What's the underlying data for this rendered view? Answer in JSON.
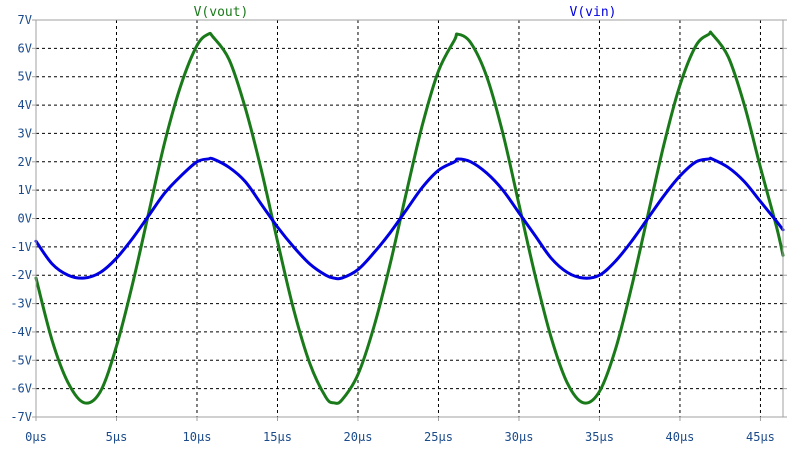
{
  "chart_data": {
    "type": "line",
    "title": "",
    "xlabel": "",
    "ylabel": "",
    "x_unit": "µs",
    "y_unit": "V",
    "xlim": [
      0,
      46.4
    ],
    "ylim": [
      -7,
      7
    ],
    "x_ticks": [
      0,
      5,
      10,
      15,
      20,
      25,
      30,
      35,
      40,
      45
    ],
    "x_tick_labels": [
      "0µs",
      "5µs",
      "10µs",
      "15µs",
      "20µs",
      "25µs",
      "30µs",
      "35µs",
      "40µs",
      "45µs"
    ],
    "y_ticks": [
      7,
      6,
      5,
      4,
      3,
      2,
      1,
      0,
      -1,
      -2,
      -3,
      -4,
      -5,
      -6,
      -7
    ],
    "y_tick_labels": [
      "7V",
      "6V",
      "5V",
      "4V",
      "3V",
      "2V",
      "1V",
      "0V",
      "-1V",
      "-2V",
      "-3V",
      "-4V",
      "-5V",
      "-6V",
      "-7V"
    ],
    "grid": true,
    "grid_style": "dashed",
    "legend_placement": "top",
    "series": [
      {
        "name": "V(vout)",
        "color": "#1a7a1a",
        "x": [
          0,
          1,
          2,
          3,
          4,
          5,
          6,
          7,
          8,
          9,
          10,
          10.7,
          11,
          12,
          13,
          14,
          15,
          16,
          17,
          18,
          18.5,
          19,
          20,
          21,
          22,
          23,
          24,
          25,
          26,
          26.2,
          27,
          28,
          29,
          30,
          31,
          32,
          33,
          34,
          35,
          36,
          37,
          38,
          39,
          40,
          41,
          41.8,
          42,
          43,
          44,
          45,
          46,
          46.4
        ],
        "values": [
          -2.1,
          -4.3,
          -5.8,
          -6.5,
          -6.1,
          -4.5,
          -2.3,
          0.2,
          2.7,
          4.7,
          6.1,
          6.5,
          6.4,
          5.6,
          3.9,
          1.7,
          -0.8,
          -3.2,
          -5.1,
          -6.3,
          -6.5,
          -6.4,
          -5.5,
          -3.8,
          -1.6,
          0.9,
          3.3,
          5.2,
          6.3,
          6.5,
          6.2,
          5.0,
          3.0,
          0.5,
          -2.0,
          -4.2,
          -5.8,
          -6.5,
          -6.1,
          -4.6,
          -2.4,
          0.1,
          2.6,
          4.7,
          6.1,
          6.5,
          6.5,
          5.7,
          4.0,
          1.8,
          -0.3,
          -1.3
        ]
      },
      {
        "name": "V(vin)",
        "color": "#0000e0",
        "x": [
          0,
          1,
          2,
          3,
          4,
          5,
          6,
          7,
          8,
          9,
          10,
          10.7,
          11,
          12,
          13,
          14,
          15,
          16,
          17,
          18,
          18.5,
          19,
          20,
          21,
          22,
          23,
          24,
          25,
          26,
          26.2,
          27,
          28,
          29,
          30,
          31,
          32,
          33,
          34,
          35,
          36,
          37,
          38,
          39,
          40,
          41,
          41.8,
          42,
          43,
          44,
          45,
          46,
          46.4
        ],
        "values": [
          -0.8,
          -1.6,
          -2.0,
          -2.1,
          -1.9,
          -1.4,
          -0.7,
          0.1,
          0.9,
          1.5,
          2.0,
          2.1,
          2.1,
          1.8,
          1.3,
          0.5,
          -0.3,
          -1.0,
          -1.6,
          -2.0,
          -2.1,
          -2.1,
          -1.8,
          -1.2,
          -0.5,
          0.3,
          1.1,
          1.7,
          2.0,
          2.1,
          2.0,
          1.6,
          1.0,
          0.2,
          -0.6,
          -1.4,
          -1.9,
          -2.1,
          -2.0,
          -1.5,
          -0.8,
          0.0,
          0.8,
          1.5,
          2.0,
          2.1,
          2.1,
          1.8,
          1.3,
          0.6,
          -0.1,
          -0.4
        ]
      }
    ]
  }
}
